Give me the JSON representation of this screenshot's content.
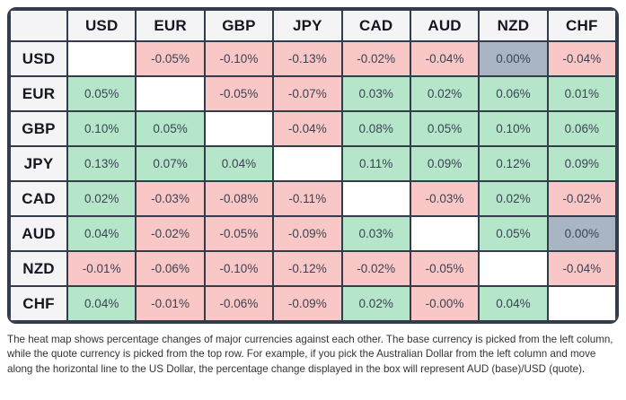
{
  "colors": {
    "positive": "#b5e6c9",
    "negative": "#f9c7c6",
    "zero": "#a9b5c2",
    "border": "#343b4a",
    "header_bg": "#f4f4f6",
    "cell_text": "#3b4254",
    "header_text": "#14171f"
  },
  "chart_data": {
    "type": "heatmap",
    "title": "",
    "corner_label": "",
    "columns_quote": [
      "USD",
      "EUR",
      "GBP",
      "JPY",
      "CAD",
      "AUD",
      "NZD",
      "CHF"
    ],
    "rows_base": [
      "USD",
      "EUR",
      "GBP",
      "JPY",
      "CAD",
      "AUD",
      "NZD",
      "CHF"
    ],
    "values_pct": [
      [
        null,
        -0.05,
        -0.1,
        -0.13,
        -0.02,
        -0.04,
        0.0,
        -0.04
      ],
      [
        0.05,
        null,
        -0.05,
        -0.07,
        0.03,
        0.02,
        0.06,
        0.01
      ],
      [
        0.1,
        0.05,
        null,
        -0.04,
        0.08,
        0.05,
        0.1,
        0.06
      ],
      [
        0.13,
        0.07,
        0.04,
        null,
        0.11,
        0.09,
        0.12,
        0.09
      ],
      [
        0.02,
        -0.03,
        -0.08,
        -0.11,
        null,
        -0.03,
        0.02,
        -0.02
      ],
      [
        0.04,
        -0.02,
        -0.05,
        -0.09,
        0.03,
        null,
        0.05,
        0.0
      ],
      [
        -0.01,
        -0.06,
        -0.1,
        -0.12,
        -0.02,
        -0.05,
        null,
        -0.04
      ],
      [
        0.04,
        -0.01,
        -0.06,
        -0.09,
        0.02,
        -0.0,
        0.04,
        null
      ]
    ],
    "labels": [
      [
        "",
        "-0.05%",
        "-0.10%",
        "-0.13%",
        "-0.02%",
        "-0.04%",
        "0.00%",
        "-0.04%"
      ],
      [
        "0.05%",
        "",
        "-0.05%",
        "-0.07%",
        "0.03%",
        "0.02%",
        "0.06%",
        "0.01%"
      ],
      [
        "0.10%",
        "0.05%",
        "",
        "-0.04%",
        "0.08%",
        "0.05%",
        "0.10%",
        "0.06%"
      ],
      [
        "0.13%",
        "0.07%",
        "0.04%",
        "",
        "0.11%",
        "0.09%",
        "0.12%",
        "0.09%"
      ],
      [
        "0.02%",
        "-0.03%",
        "-0.08%",
        "-0.11%",
        "",
        "-0.03%",
        "0.02%",
        "-0.02%"
      ],
      [
        "0.04%",
        "-0.02%",
        "-0.05%",
        "-0.09%",
        "0.03%",
        "",
        "0.05%",
        "0.00%"
      ],
      [
        "-0.01%",
        "-0.06%",
        "-0.10%",
        "-0.12%",
        "-0.02%",
        "-0.05%",
        "",
        "-0.04%"
      ],
      [
        "0.04%",
        "-0.01%",
        "-0.06%",
        "-0.09%",
        "0.02%",
        "-0.00%",
        "0.04%",
        ""
      ]
    ],
    "tones": [
      [
        "self",
        "neg",
        "neg",
        "neg",
        "neg",
        "neg",
        "zero",
        "neg"
      ],
      [
        "pos",
        "self",
        "neg",
        "neg",
        "pos",
        "pos",
        "pos",
        "pos"
      ],
      [
        "pos",
        "pos",
        "self",
        "neg",
        "pos",
        "pos",
        "pos",
        "pos"
      ],
      [
        "pos",
        "pos",
        "pos",
        "self",
        "pos",
        "pos",
        "pos",
        "pos"
      ],
      [
        "pos",
        "neg",
        "neg",
        "neg",
        "self",
        "neg",
        "pos",
        "neg"
      ],
      [
        "pos",
        "neg",
        "neg",
        "neg",
        "pos",
        "self",
        "pos",
        "zero"
      ],
      [
        "neg",
        "neg",
        "neg",
        "neg",
        "neg",
        "neg",
        "self",
        "neg"
      ],
      [
        "pos",
        "neg",
        "neg",
        "neg",
        "pos",
        "neg",
        "pos",
        "self"
      ]
    ],
    "legend_position": "none",
    "grid": true
  },
  "caption": "The heat map shows percentage changes of major currencies against each other. The base currency is picked from the left column, while the quote currency is picked from the top row. For example, if you pick the Australian Dollar from the left column and move along the horizontal line to the US Dollar, the percentage change displayed in the box will represent AUD (base)/USD (quote)."
}
